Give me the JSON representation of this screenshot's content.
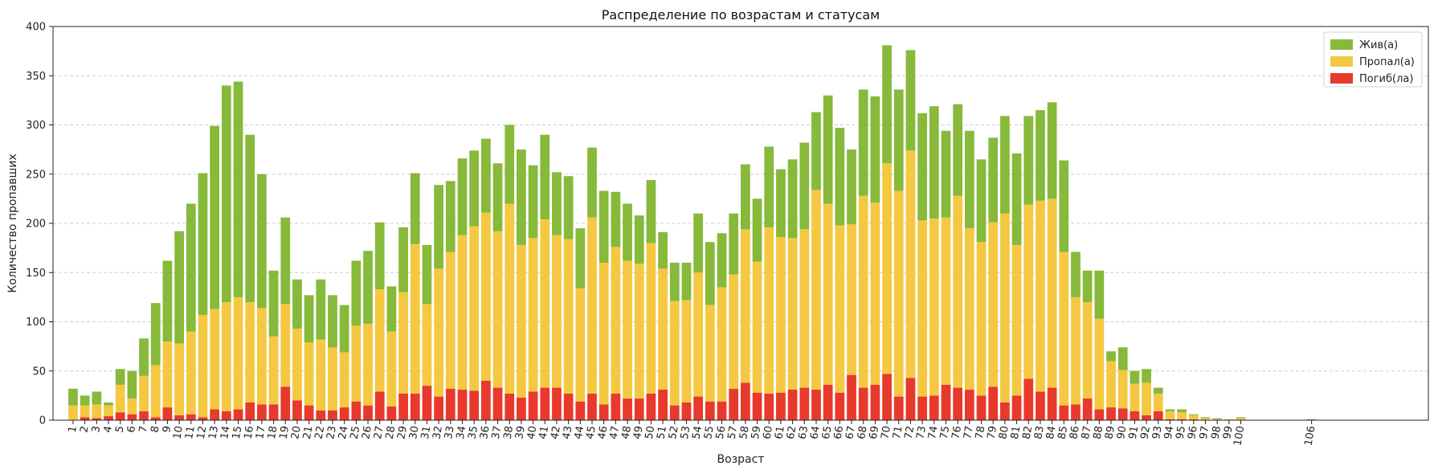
{
  "chart_data": {
    "type": "bar",
    "stacked": true,
    "title": "Распределение по возрастам и статусам",
    "xlabel": "Возраст",
    "ylabel": "Количество пропавших",
    "ylim": [
      0,
      400
    ],
    "yticks": [
      0,
      50,
      100,
      150,
      200,
      250,
      300,
      350,
      400
    ],
    "grid": "y-dashed",
    "legend_position": "top-right",
    "x": [
      1,
      2,
      3,
      4,
      5,
      6,
      7,
      8,
      9,
      10,
      11,
      12,
      13,
      14,
      15,
      16,
      17,
      18,
      19,
      20,
      21,
      22,
      23,
      24,
      25,
      26,
      27,
      28,
      29,
      30,
      31,
      32,
      33,
      34,
      35,
      36,
      37,
      38,
      39,
      40,
      41,
      42,
      43,
      44,
      45,
      46,
      47,
      48,
      49,
      50,
      51,
      52,
      53,
      54,
      55,
      56,
      57,
      58,
      59,
      60,
      61,
      62,
      63,
      64,
      65,
      66,
      67,
      68,
      69,
      70,
      71,
      72,
      73,
      74,
      75,
      76,
      77,
      78,
      79,
      80,
      81,
      82,
      83,
      84,
      85,
      86,
      87,
      88,
      89,
      90,
      91,
      92,
      93,
      94,
      95,
      96,
      97,
      98,
      99,
      100,
      106
    ],
    "x_tick_labels": [
      "1",
      "2",
      "3",
      "4",
      "5",
      "6",
      "7",
      "8",
      "9",
      "10",
      "11",
      "12",
      "13",
      "14",
      "15",
      "16",
      "17",
      "18",
      "19",
      "20",
      "21",
      "22",
      "23",
      "24",
      "25",
      "26",
      "27",
      "28",
      "29",
      "30",
      "31",
      "32",
      "33",
      "34",
      "35",
      "36",
      "37",
      "38",
      "39",
      "40",
      "41",
      "42",
      "43",
      "44",
      "45",
      "46",
      "47",
      "48",
      "49",
      "50",
      "51",
      "52",
      "53",
      "54",
      "55",
      "56",
      "57",
      "58",
      "59",
      "60",
      "61",
      "62",
      "63",
      "64",
      "65",
      "66",
      "67",
      "68",
      "69",
      "70",
      "71",
      "72",
      "73",
      "74",
      "75",
      "76",
      "77",
      "78",
      "79",
      "80",
      "81",
      "82",
      "83",
      "84",
      "85",
      "86",
      "87",
      "88",
      "89",
      "90",
      "91",
      "92",
      "93",
      "94",
      "95",
      "96",
      "97",
      "98",
      "99",
      "100",
      "106"
    ],
    "series": [
      {
        "name": "Погиб(ла)",
        "color": "#e8392d",
        "values": [
          0,
          3,
          2,
          4,
          8,
          6,
          9,
          3,
          13,
          5,
          6,
          3,
          11,
          9,
          11,
          18,
          16,
          16,
          34,
          20,
          15,
          10,
          10,
          13,
          19,
          15,
          29,
          14,
          27,
          27,
          35,
          24,
          32,
          31,
          30,
          40,
          33,
          27,
          23,
          29,
          33,
          33,
          27,
          19,
          27,
          16,
          27,
          22,
          22,
          27,
          31,
          15,
          18,
          24,
          19,
          19,
          32,
          38,
          28,
          27,
          28,
          31,
          33,
          31,
          36,
          28,
          46,
          33,
          36,
          47,
          24,
          43,
          24,
          25,
          36,
          33,
          31,
          25,
          34,
          18,
          25,
          42,
          29,
          33,
          15,
          16,
          22,
          11,
          13,
          12,
          9,
          5,
          9,
          1,
          1,
          1,
          0,
          0,
          0,
          0,
          0
        ]
      },
      {
        "name": "Пропал(а)",
        "color": "#f5c842",
        "values": [
          15,
          12,
          14,
          11,
          28,
          16,
          36,
          53,
          67,
          73,
          84,
          104,
          102,
          111,
          114,
          102,
          98,
          69,
          84,
          73,
          64,
          72,
          64,
          56,
          77,
          83,
          104,
          76,
          103,
          152,
          83,
          130,
          139,
          157,
          167,
          171,
          159,
          193,
          155,
          156,
          171,
          155,
          157,
          115,
          179,
          144,
          149,
          140,
          137,
          153,
          123,
          106,
          104,
          126,
          98,
          116,
          116,
          156,
          133,
          169,
          158,
          154,
          161,
          203,
          184,
          170,
          153,
          195,
          185,
          214,
          209,
          231,
          179,
          180,
          170,
          195,
          164,
          156,
          167,
          192,
          153,
          177,
          194,
          192,
          156,
          109,
          98,
          92,
          47,
          39,
          28,
          33,
          18,
          8,
          7,
          4,
          2,
          1,
          1,
          2,
          0
        ]
      },
      {
        "name": "Жив(а)",
        "color": "#87b93a",
        "values": [
          17,
          10,
          13,
          3,
          16,
          28,
          38,
          63,
          82,
          114,
          130,
          144,
          186,
          220,
          219,
          170,
          136,
          67,
          88,
          50,
          48,
          61,
          53,
          48,
          66,
          74,
          68,
          46,
          66,
          72,
          60,
          85,
          72,
          78,
          77,
          75,
          69,
          80,
          97,
          74,
          86,
          64,
          64,
          61,
          71,
          73,
          56,
          58,
          49,
          64,
          37,
          39,
          38,
          60,
          64,
          55,
          62,
          66,
          64,
          82,
          69,
          80,
          88,
          79,
          110,
          99,
          76,
          108,
          108,
          120,
          103,
          102,
          109,
          114,
          88,
          93,
          99,
          84,
          86,
          99,
          93,
          90,
          92,
          98,
          93,
          46,
          32,
          49,
          10,
          23,
          13,
          14,
          6,
          2,
          3,
          1,
          1,
          1,
          0,
          1,
          1
        ]
      }
    ],
    "legend": [
      {
        "label": "Жив(а)",
        "color": "#87b93a"
      },
      {
        "label": "Пропал(а)",
        "color": "#f5c842"
      },
      {
        "label": "Погиб(ла)",
        "color": "#e8392d"
      }
    ]
  }
}
